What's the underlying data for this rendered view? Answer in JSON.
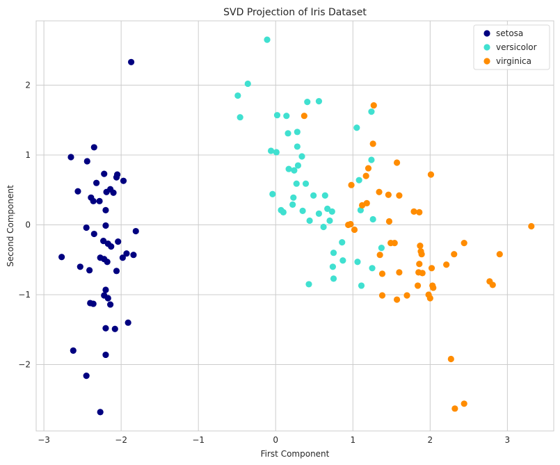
{
  "chart_data": {
    "type": "scatter",
    "title": "SVD Projection of Iris Dataset",
    "xlabel": "First Component",
    "ylabel": "Second Component",
    "xlim": [
      -3.1,
      3.6
    ],
    "ylim": [
      -2.95,
      2.92
    ],
    "xticks": [
      -3,
      -2,
      -1,
      0,
      1,
      2,
      3
    ],
    "yticks": [
      -2,
      -1,
      0,
      1,
      2
    ],
    "xtick_labels": [
      "−3",
      "−2",
      "−1",
      "0",
      "1",
      "2",
      "3"
    ],
    "ytick_labels": [
      "−2",
      "−1",
      "0",
      "1",
      "2"
    ],
    "grid": true,
    "legend_position": "top-right",
    "series": [
      {
        "name": "setosa",
        "color": "#000080",
        "points": [
          [
            -1.87,
            2.33
          ],
          [
            -2.65,
            0.97
          ],
          [
            -2.35,
            1.11
          ],
          [
            -2.44,
            0.91
          ],
          [
            -2.22,
            0.73
          ],
          [
            -2.05,
            0.72
          ],
          [
            -2.06,
            0.68
          ],
          [
            -2.32,
            0.6
          ],
          [
            -1.97,
            0.63
          ],
          [
            -2.56,
            0.48
          ],
          [
            -2.19,
            0.47
          ],
          [
            -2.14,
            0.51
          ],
          [
            -2.1,
            0.46
          ],
          [
            -2.39,
            0.39
          ],
          [
            -2.36,
            0.34
          ],
          [
            -2.28,
            0.34
          ],
          [
            -2.2,
            0.21
          ],
          [
            -2.45,
            -0.04
          ],
          [
            -2.2,
            -0.01
          ],
          [
            -2.35,
            -0.13
          ],
          [
            -1.81,
            -0.09
          ],
          [
            -2.23,
            -0.23
          ],
          [
            -2.17,
            -0.27
          ],
          [
            -2.04,
            -0.24
          ],
          [
            -2.13,
            -0.31
          ],
          [
            -2.77,
            -0.46
          ],
          [
            -2.27,
            -0.47
          ],
          [
            -2.22,
            -0.49
          ],
          [
            -2.18,
            -0.53
          ],
          [
            -1.93,
            -0.41
          ],
          [
            -1.84,
            -0.43
          ],
          [
            -1.98,
            -0.47
          ],
          [
            -2.53,
            -0.6
          ],
          [
            -2.41,
            -0.65
          ],
          [
            -2.06,
            -0.66
          ],
          [
            -2.2,
            -0.93
          ],
          [
            -2.22,
            -1.01
          ],
          [
            -2.17,
            -1.05
          ],
          [
            -2.4,
            -1.12
          ],
          [
            -2.36,
            -1.13
          ],
          [
            -2.14,
            -1.14
          ],
          [
            -1.91,
            -1.4
          ],
          [
            -2.2,
            -1.48
          ],
          [
            -2.08,
            -1.49
          ],
          [
            -2.62,
            -1.8
          ],
          [
            -2.2,
            -1.86
          ],
          [
            -2.45,
            -2.16
          ],
          [
            -2.27,
            -2.68
          ]
        ]
      },
      {
        "name": "versicolor",
        "color": "#40E0D0",
        "points": [
          [
            -0.11,
            2.65
          ],
          [
            -0.36,
            2.02
          ],
          [
            -0.49,
            1.85
          ],
          [
            -0.46,
            1.54
          ],
          [
            0.56,
            1.77
          ],
          [
            0.41,
            1.76
          ],
          [
            1.24,
            1.62
          ],
          [
            0.02,
            1.57
          ],
          [
            0.14,
            1.56
          ],
          [
            1.05,
            1.39
          ],
          [
            0.16,
            1.31
          ],
          [
            0.28,
            1.33
          ],
          [
            0.28,
            1.12
          ],
          [
            -0.06,
            1.06
          ],
          [
            0.01,
            1.04
          ],
          [
            0.34,
            0.98
          ],
          [
            1.24,
            0.93
          ],
          [
            0.29,
            0.85
          ],
          [
            0.17,
            0.8
          ],
          [
            0.24,
            0.78
          ],
          [
            1.08,
            0.64
          ],
          [
            0.27,
            0.59
          ],
          [
            0.39,
            0.59
          ],
          [
            -0.04,
            0.44
          ],
          [
            0.23,
            0.39
          ],
          [
            0.49,
            0.42
          ],
          [
            0.64,
            0.42
          ],
          [
            0.22,
            0.29
          ],
          [
            0.07,
            0.21
          ],
          [
            0.1,
            0.18
          ],
          [
            0.35,
            0.2
          ],
          [
            0.67,
            0.23
          ],
          [
            0.73,
            0.19
          ],
          [
            0.56,
            0.16
          ],
          [
            1.1,
            0.21
          ],
          [
            0.44,
            0.06
          ],
          [
            0.7,
            0.06
          ],
          [
            1.26,
            0.08
          ],
          [
            0.62,
            -0.03
          ],
          [
            0.86,
            -0.25
          ],
          [
            1.37,
            -0.33
          ],
          [
            0.75,
            -0.4
          ],
          [
            0.87,
            -0.51
          ],
          [
            1.06,
            -0.53
          ],
          [
            0.74,
            -0.6
          ],
          [
            1.25,
            -0.62
          ],
          [
            0.75,
            -0.77
          ],
          [
            0.43,
            -0.85
          ],
          [
            1.11,
            -0.87
          ]
        ]
      },
      {
        "name": "virginica",
        "color": "#FF8C00",
        "points": [
          [
            1.27,
            1.71
          ],
          [
            0.37,
            1.56
          ],
          [
            1.26,
            1.16
          ],
          [
            1.57,
            0.89
          ],
          [
            1.2,
            0.81
          ],
          [
            2.01,
            0.72
          ],
          [
            1.17,
            0.7
          ],
          [
            0.98,
            0.57
          ],
          [
            1.34,
            0.47
          ],
          [
            1.46,
            0.43
          ],
          [
            1.6,
            0.42
          ],
          [
            1.18,
            0.31
          ],
          [
            1.12,
            0.28
          ],
          [
            1.79,
            0.19
          ],
          [
            1.86,
            0.18
          ],
          [
            1.47,
            0.05
          ],
          [
            0.94,
            0.0
          ],
          [
            0.97,
            0.01
          ],
          [
            1.02,
            -0.07
          ],
          [
            3.31,
            -0.02
          ],
          [
            1.49,
            -0.26
          ],
          [
            1.54,
            -0.26
          ],
          [
            2.44,
            -0.26
          ],
          [
            1.87,
            -0.3
          ],
          [
            1.88,
            -0.38
          ],
          [
            1.89,
            -0.42
          ],
          [
            2.31,
            -0.42
          ],
          [
            2.9,
            -0.42
          ],
          [
            1.35,
            -0.43
          ],
          [
            2.21,
            -0.57
          ],
          [
            1.86,
            -0.56
          ],
          [
            2.02,
            -0.62
          ],
          [
            1.6,
            -0.68
          ],
          [
            1.85,
            -0.68
          ],
          [
            1.9,
            -0.69
          ],
          [
            1.38,
            -0.7
          ],
          [
            2.77,
            -0.81
          ],
          [
            2.81,
            -0.86
          ],
          [
            1.84,
            -0.87
          ],
          [
            2.03,
            -0.87
          ],
          [
            2.04,
            -0.9
          ],
          [
            1.98,
            -1.0
          ],
          [
            1.7,
            -1.01
          ],
          [
            1.38,
            -1.01
          ],
          [
            2.0,
            -1.05
          ],
          [
            1.57,
            -1.07
          ],
          [
            2.27,
            -1.92
          ],
          [
            2.44,
            -2.56
          ],
          [
            2.32,
            -2.63
          ]
        ]
      }
    ]
  }
}
